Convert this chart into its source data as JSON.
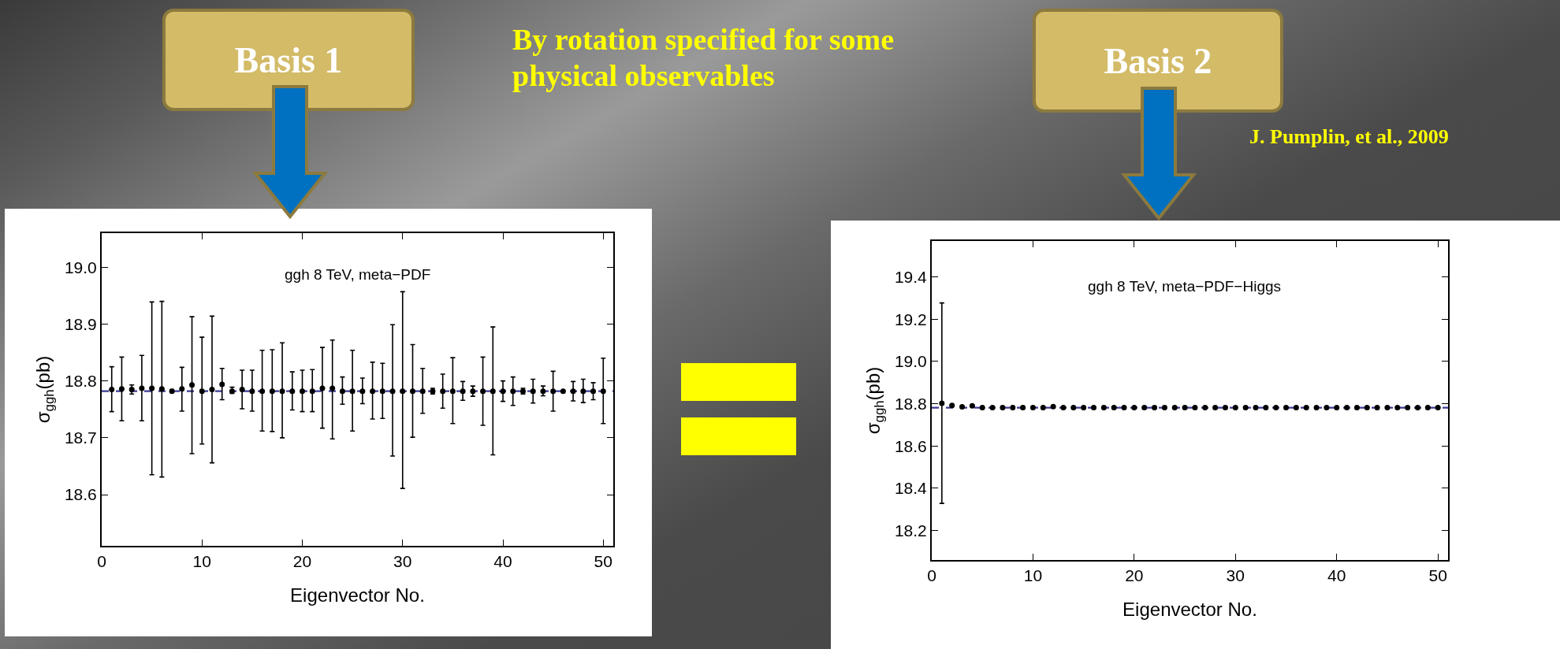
{
  "chart_data": [
    {
      "type": "scatter",
      "title": "ggh 8 TeV, meta−PDF",
      "xlabel": "Eigenvector No.",
      "ylabel": "σ$_{ggh}$(pb)",
      "color": "#000000",
      "marker": "circle",
      "grid": false,
      "annotations": [
        "Basis 1",
        "By rotation specified for some physical observables"
      ],
      "x": [
        1,
        2,
        3,
        4,
        5,
        6,
        7,
        8,
        9,
        10,
        11,
        12,
        13,
        14,
        15,
        16,
        17,
        18,
        19,
        20,
        21,
        22,
        23,
        24,
        25,
        26,
        27,
        28,
        29,
        30,
        31,
        32,
        33,
        34,
        35,
        36,
        37,
        38,
        39,
        40,
        41,
        42,
        43,
        44,
        45,
        46,
        47,
        48,
        49,
        50
      ],
      "values": [
        18.785,
        18.786,
        18.785,
        18.787,
        18.787,
        18.786,
        18.782,
        18.786,
        18.793,
        18.782,
        18.785,
        18.794,
        18.782,
        18.785,
        18.782,
        18.782,
        18.782,
        18.782,
        18.782,
        18.782,
        18.782,
        18.787,
        18.787,
        18.782,
        18.782,
        18.782,
        18.782,
        18.782,
        18.782,
        18.782,
        18.782,
        18.782,
        18.782,
        18.782,
        18.782,
        18.782,
        18.782,
        18.782,
        18.782,
        18.782,
        18.782,
        18.782,
        18.782,
        18.782,
        18.782,
        18.782,
        18.782,
        18.782,
        18.782,
        18.782
      ],
      "errors": [
        [
          18.746,
          18.825
        ],
        [
          18.73,
          18.842
        ],
        [
          18.777,
          18.793
        ],
        [
          18.73,
          18.845
        ],
        [
          18.635,
          18.939
        ],
        [
          18.631,
          18.94
        ],
        [
          18.78,
          18.785
        ],
        [
          18.747,
          18.824
        ],
        [
          18.672,
          18.913
        ],
        [
          18.689,
          18.877
        ],
        [
          18.656,
          18.914
        ],
        [
          18.767,
          18.822
        ],
        [
          18.778,
          18.789
        ],
        [
          18.751,
          18.819
        ],
        [
          18.747,
          18.819
        ],
        [
          18.712,
          18.854
        ],
        [
          18.711,
          18.855
        ],
        [
          18.7,
          18.867
        ],
        [
          18.749,
          18.816
        ],
        [
          18.746,
          18.819
        ],
        [
          18.746,
          18.82
        ],
        [
          18.717,
          18.859
        ],
        [
          18.698,
          18.872
        ],
        [
          18.759,
          18.807
        ],
        [
          18.712,
          18.854
        ],
        [
          18.76,
          18.805
        ],
        [
          18.733,
          18.833
        ],
        [
          18.734,
          18.831
        ],
        [
          18.668,
          18.899
        ],
        [
          18.611,
          18.957
        ],
        [
          18.701,
          18.864
        ],
        [
          18.743,
          18.822
        ],
        [
          18.777,
          18.787
        ],
        [
          18.752,
          18.812
        ],
        [
          18.725,
          18.841
        ],
        [
          18.766,
          18.799
        ],
        [
          18.773,
          18.791
        ],
        [
          18.722,
          18.842
        ],
        [
          18.67,
          18.895
        ],
        [
          18.764,
          18.8
        ],
        [
          18.757,
          18.807
        ],
        [
          18.777,
          18.787
        ],
        [
          18.761,
          18.803
        ],
        [
          18.774,
          18.791
        ],
        [
          18.747,
          18.817
        ],
        null,
        [
          18.765,
          18.799
        ],
        [
          18.762,
          18.803
        ],
        [
          18.767,
          18.797
        ],
        [
          18.725,
          18.84
        ]
      ],
      "xlim": [
        0,
        51
      ],
      "xticks": [
        0,
        10,
        20,
        30,
        40,
        50
      ],
      "ylim": [
        18.51,
        19.06
      ],
      "yticks": [
        18.6,
        18.7,
        18.8,
        18.9,
        {
          "value": 19,
          "label": "19.0"
        }
      ],
      "ref_lines": [
        {
          "axis": "y",
          "value": 18.782,
          "color": "#3c3c96",
          "line_style": "dashed"
        }
      ]
    },
    {
      "type": "scatter",
      "title": "ggh 8 TeV, meta−PDF−Higgs",
      "xlabel": "Eigenvector No.",
      "ylabel": "σ$_{ggh}$(pb)",
      "color": "#000000",
      "marker": "circle",
      "grid": false,
      "annotations": [
        "Basis 2",
        "J. Pumplin, et al., 2009"
      ],
      "x": [
        1,
        2,
        3,
        4,
        5,
        6,
        7,
        8,
        9,
        10,
        11,
        12,
        13,
        14,
        15,
        16,
        17,
        18,
        19,
        20,
        21,
        22,
        23,
        24,
        25,
        26,
        27,
        28,
        29,
        30,
        31,
        32,
        33,
        34,
        35,
        36,
        37,
        38,
        39,
        40,
        41,
        42,
        43,
        44,
        45,
        46,
        47,
        48,
        49,
        50
      ],
      "values": [
        18.802,
        18.792,
        18.785,
        18.79,
        18.781,
        18.781,
        18.781,
        18.781,
        18.781,
        18.781,
        18.781,
        18.786,
        18.781,
        18.781,
        18.781,
        18.781,
        18.781,
        18.781,
        18.781,
        18.781,
        18.781,
        18.781,
        18.781,
        18.781,
        18.781,
        18.781,
        18.781,
        18.781,
        18.781,
        18.781,
        18.781,
        18.781,
        18.781,
        18.781,
        18.781,
        18.781,
        18.781,
        18.781,
        18.781,
        18.781,
        18.781,
        18.781,
        18.781,
        18.781,
        18.781,
        18.781,
        18.781,
        18.781,
        18.781,
        18.781
      ],
      "errors": [
        [
          18.328,
          19.277
        ],
        null,
        null,
        null,
        null,
        null,
        null,
        null,
        null,
        null,
        null,
        null,
        null,
        null,
        null,
        null,
        null,
        null,
        null,
        null,
        null,
        null,
        null,
        null,
        null,
        null,
        null,
        null,
        null,
        null,
        null,
        null,
        null,
        null,
        null,
        null,
        null,
        null,
        null,
        null,
        null,
        null,
        null,
        null,
        null,
        null,
        null,
        null,
        null,
        null
      ],
      "xlim": [
        0,
        51
      ],
      "xticks": [
        0,
        10,
        20,
        30,
        40,
        50
      ],
      "ylim": [
        18.06,
        19.57
      ],
      "yticks": [
        18.2,
        18.4,
        18.6,
        18.8,
        {
          "value": 19,
          "label": "19.0"
        },
        19.2,
        19.4
      ],
      "ref_lines": [
        {
          "axis": "y",
          "value": 18.781,
          "color": "#3c3c96",
          "line_style": "dashed"
        }
      ]
    }
  ]
}
